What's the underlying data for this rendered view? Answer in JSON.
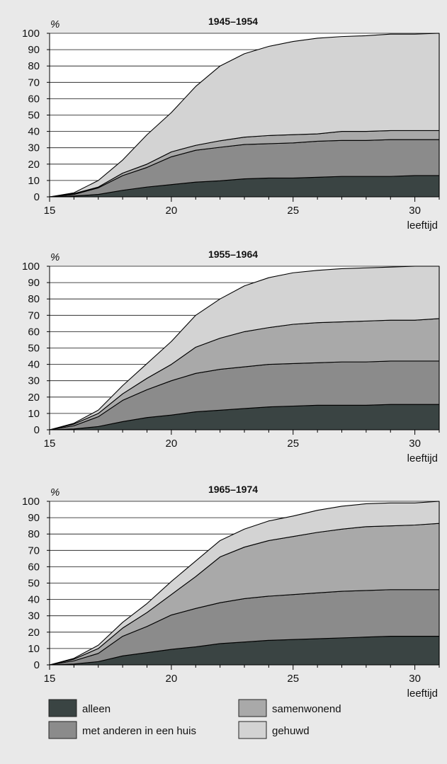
{
  "colors": {
    "alleen": "#3a4443",
    "met_anderen": "#8b8b8b",
    "samenwonend": "#a9a9a9",
    "gehuwd": "#d3d3d3",
    "background": "#e9e9e9",
    "plot": "#ffffff"
  },
  "legend": [
    {
      "key": "alleen",
      "label": "alleen"
    },
    {
      "key": "met_anderen",
      "label": "met anderen in een huis"
    },
    {
      "key": "samenwonend",
      "label": "samenwonend"
    },
    {
      "key": "gehuwd",
      "label": "gehuwd"
    }
  ],
  "chart_data": [
    {
      "type": "area",
      "stacked": true,
      "title": "1945–1954",
      "xlabel": "leeftijd",
      "ylabel": "%",
      "xlim": [
        15,
        31
      ],
      "ylim": [
        0,
        100
      ],
      "xticks": [
        15,
        20,
        25,
        30
      ],
      "yticks": [
        0,
        10,
        20,
        30,
        40,
        50,
        60,
        70,
        80,
        90,
        100
      ],
      "grid": "horizontal",
      "x": [
        15,
        16,
        17,
        18,
        19,
        20,
        21,
        22,
        23,
        24,
        25,
        26,
        27,
        28,
        29,
        30,
        31
      ],
      "series": [
        {
          "name": "alleen",
          "key": "alleen",
          "values": [
            0,
            0.5,
            1.5,
            4,
            6,
            7.5,
            9,
            9.8,
            11,
            11.5,
            11.5,
            12,
            12.5,
            12.5,
            12.5,
            13,
            13
          ]
        },
        {
          "name": "met anderen in een huis",
          "key": "met_anderen",
          "values": [
            0,
            1,
            4,
            9,
            12,
            17,
            19.5,
            20.5,
            21,
            21,
            21.5,
            22,
            22,
            22,
            22.5,
            22,
            22
          ]
        },
        {
          "name": "samenwonend",
          "key": "samenwonend",
          "values": [
            0,
            0.5,
            0.5,
            1.5,
            2,
            3,
            3,
            4,
            4.5,
            5,
            5,
            4.5,
            5.5,
            5.5,
            5.5,
            5.5,
            5.5
          ]
        },
        {
          "name": "gehuwd",
          "key": "gehuwd",
          "values": [
            0,
            0.5,
            4,
            8,
            18,
            24,
            36,
            45.7,
            51,
            54.5,
            57,
            58.5,
            58,
            58.5,
            59,
            59,
            59.5
          ]
        }
      ]
    },
    {
      "type": "area",
      "stacked": true,
      "title": "1955–1964",
      "xlabel": "leeftijd",
      "ylabel": "%",
      "xlim": [
        15,
        31
      ],
      "ylim": [
        0,
        100
      ],
      "xticks": [
        15,
        20,
        25,
        30
      ],
      "yticks": [
        0,
        10,
        20,
        30,
        40,
        50,
        60,
        70,
        80,
        90,
        100
      ],
      "grid": "horizontal",
      "x": [
        15,
        16,
        17,
        18,
        19,
        20,
        21,
        22,
        23,
        24,
        25,
        26,
        27,
        28,
        29,
        30,
        31
      ],
      "series": [
        {
          "name": "alleen",
          "key": "alleen",
          "values": [
            0,
            0.5,
            2,
            5,
            7.5,
            9,
            11,
            12,
            13,
            14,
            14.5,
            15,
            15,
            15,
            15.5,
            15.5,
            15.5
          ]
        },
        {
          "name": "met anderen in een huis",
          "key": "met_anderen",
          "values": [
            0,
            2,
            6,
            13,
            17,
            21,
            23.5,
            25,
            25.5,
            26,
            26,
            26,
            26.5,
            26.5,
            26.5,
            26.5,
            26.5
          ]
        },
        {
          "name": "samenwonend",
          "key": "samenwonend",
          "values": [
            0,
            1,
            2,
            4,
            7,
            10,
            16,
            19,
            21.5,
            22.5,
            24,
            24.5,
            24.5,
            25,
            25,
            25,
            26
          ]
        },
        {
          "name": "gehuwd",
          "key": "gehuwd",
          "values": [
            0,
            0.5,
            2,
            5,
            9,
            14,
            19.5,
            24,
            28,
            30.5,
            31.5,
            32,
            32.5,
            32.5,
            32.5,
            33,
            32
          ]
        }
      ]
    },
    {
      "type": "area",
      "stacked": true,
      "title": "1965–1974",
      "xlabel": "leeftijd",
      "ylabel": "%",
      "xlim": [
        15,
        31
      ],
      "ylim": [
        0,
        100
      ],
      "xticks": [
        15,
        20,
        25,
        30
      ],
      "yticks": [
        0,
        10,
        20,
        30,
        40,
        50,
        60,
        70,
        80,
        90,
        100
      ],
      "grid": "horizontal",
      "x": [
        15,
        16,
        17,
        18,
        19,
        20,
        21,
        22,
        23,
        24,
        25,
        26,
        27,
        28,
        29,
        30,
        31
      ],
      "series": [
        {
          "name": "alleen",
          "key": "alleen",
          "values": [
            0,
            0.5,
            2,
            5.5,
            7.5,
            9.5,
            11,
            13,
            14,
            15,
            15.5,
            16,
            16.5,
            17,
            17.5,
            17.5,
            17.5
          ]
        },
        {
          "name": "met anderen in een huis",
          "key": "met_anderen",
          "values": [
            0,
            2,
            5,
            12,
            16,
            21,
            23.5,
            25,
            26.5,
            27,
            27.5,
            28,
            28.5,
            28.5,
            28.5,
            28.5,
            28.5
          ]
        },
        {
          "name": "samenwonend",
          "key": "samenwonend",
          "values": [
            0,
            1,
            3,
            5,
            8.5,
            12.5,
            19.5,
            28,
            31.5,
            34,
            35.5,
            37,
            38,
            39,
            39,
            39.5,
            40.5
          ]
        },
        {
          "name": "gehuwd",
          "key": "gehuwd",
          "values": [
            0,
            0.5,
            2,
            3.5,
            5.5,
            8,
            9.5,
            10,
            11,
            12,
            12.5,
            13.5,
            14,
            14,
            14,
            13.5,
            13.5
          ]
        }
      ]
    }
  ]
}
